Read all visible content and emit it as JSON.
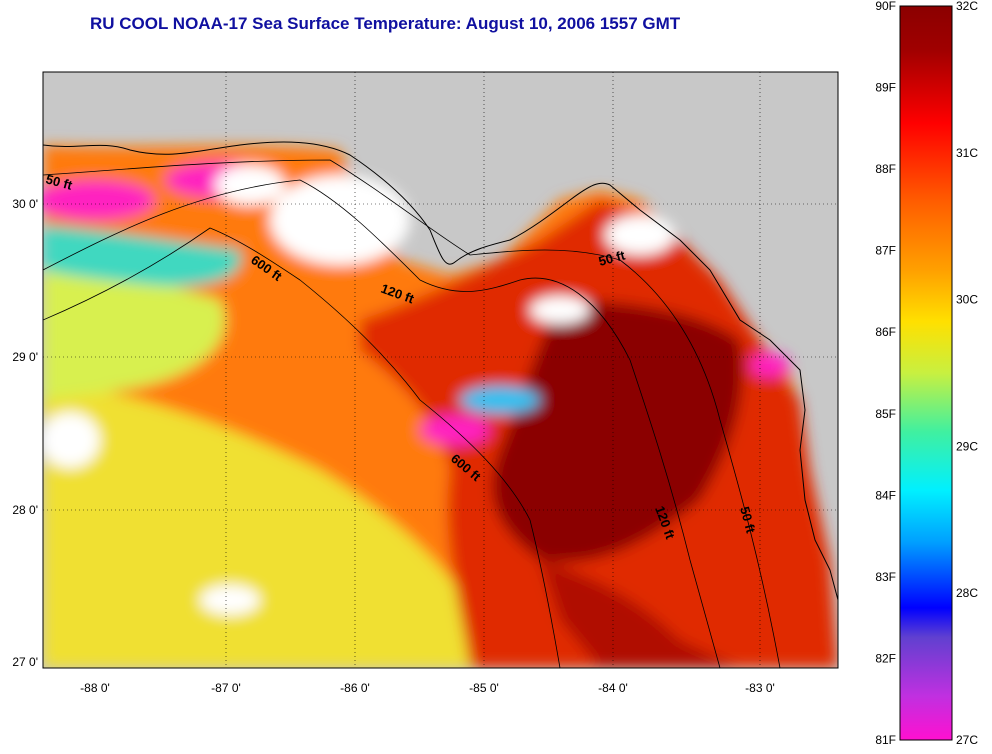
{
  "title": "RU COOL  NOAA-17  Sea Surface Temperature:  August 10, 2006 1557 GMT",
  "axes": {
    "lon_ticks": [
      "-88 0'",
      "-87 0'",
      "-86 0'",
      "-85 0'",
      "-84 0'",
      "-83 0'"
    ],
    "lat_ticks": [
      "30 0'",
      "29 0'",
      "28 0'",
      "27 0'"
    ]
  },
  "contours": {
    "label_50": "50 ft",
    "label_120": "120 ft",
    "label_600": "600 ft"
  },
  "colorbar": {
    "fahrenheit_labels": [
      "90F",
      "89F",
      "88F",
      "87F",
      "86F",
      "85F",
      "84F",
      "83F",
      "82F",
      "81F"
    ],
    "celsius_labels": [
      "32C",
      "31C",
      "30C",
      "29C",
      "28C",
      "27C"
    ],
    "range_c": [
      27,
      32
    ],
    "range_f": [
      81,
      90
    ]
  },
  "colors": {
    "land": "#c8c8c8",
    "title": "#1010a0",
    "sst_hot": "#8b0000",
    "sst_warm": "#e03000",
    "sst_mid": "#ff9000",
    "sst_cool": "#e8f040",
    "cloud": "#ffffff",
    "cold_patch": "#ff20c0"
  }
}
